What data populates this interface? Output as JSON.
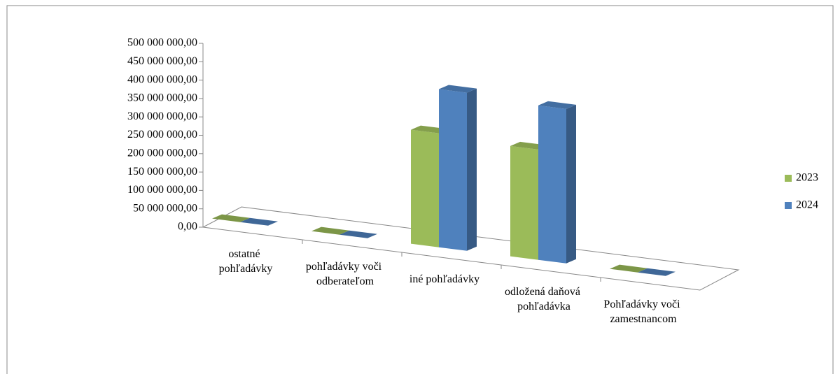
{
  "chart_data": {
    "type": "bar3d",
    "categories": [
      "ostatné pohľadávky",
      "pohľadávky voči odberateľom",
      "iné pohľadávky",
      "odložená daňová pohľadávka",
      "Pohľadávky voči zamestnancom"
    ],
    "series": [
      {
        "name": "2023",
        "color": "#9bbb59",
        "values": [
          0,
          0,
          310000000,
          300000000,
          0
        ]
      },
      {
        "name": "2024",
        "color": "#4f81bd",
        "values": [
          0,
          0,
          430000000,
          420000000,
          0
        ]
      }
    ],
    "ylim": [
      0,
      500000000
    ],
    "yticks": [
      {
        "value": 0,
        "label": "0,00"
      },
      {
        "value": 50000000,
        "label": "50 000 000,00"
      },
      {
        "value": 100000000,
        "label": "100 000 000,00"
      },
      {
        "value": 150000000,
        "label": "150 000 000,00"
      },
      {
        "value": 200000000,
        "label": "200 000 000,00"
      },
      {
        "value": 250000000,
        "label": "250 000 000,00"
      },
      {
        "value": 300000000,
        "label": "300 000 000,00"
      },
      {
        "value": 350000000,
        "label": "350 000 000,00"
      },
      {
        "value": 400000000,
        "label": "400 000 000,00"
      },
      {
        "value": 450000000,
        "label": "450 000 000,00"
      },
      {
        "value": 500000000,
        "label": "500 000 000,00"
      }
    ],
    "legend": "right"
  }
}
